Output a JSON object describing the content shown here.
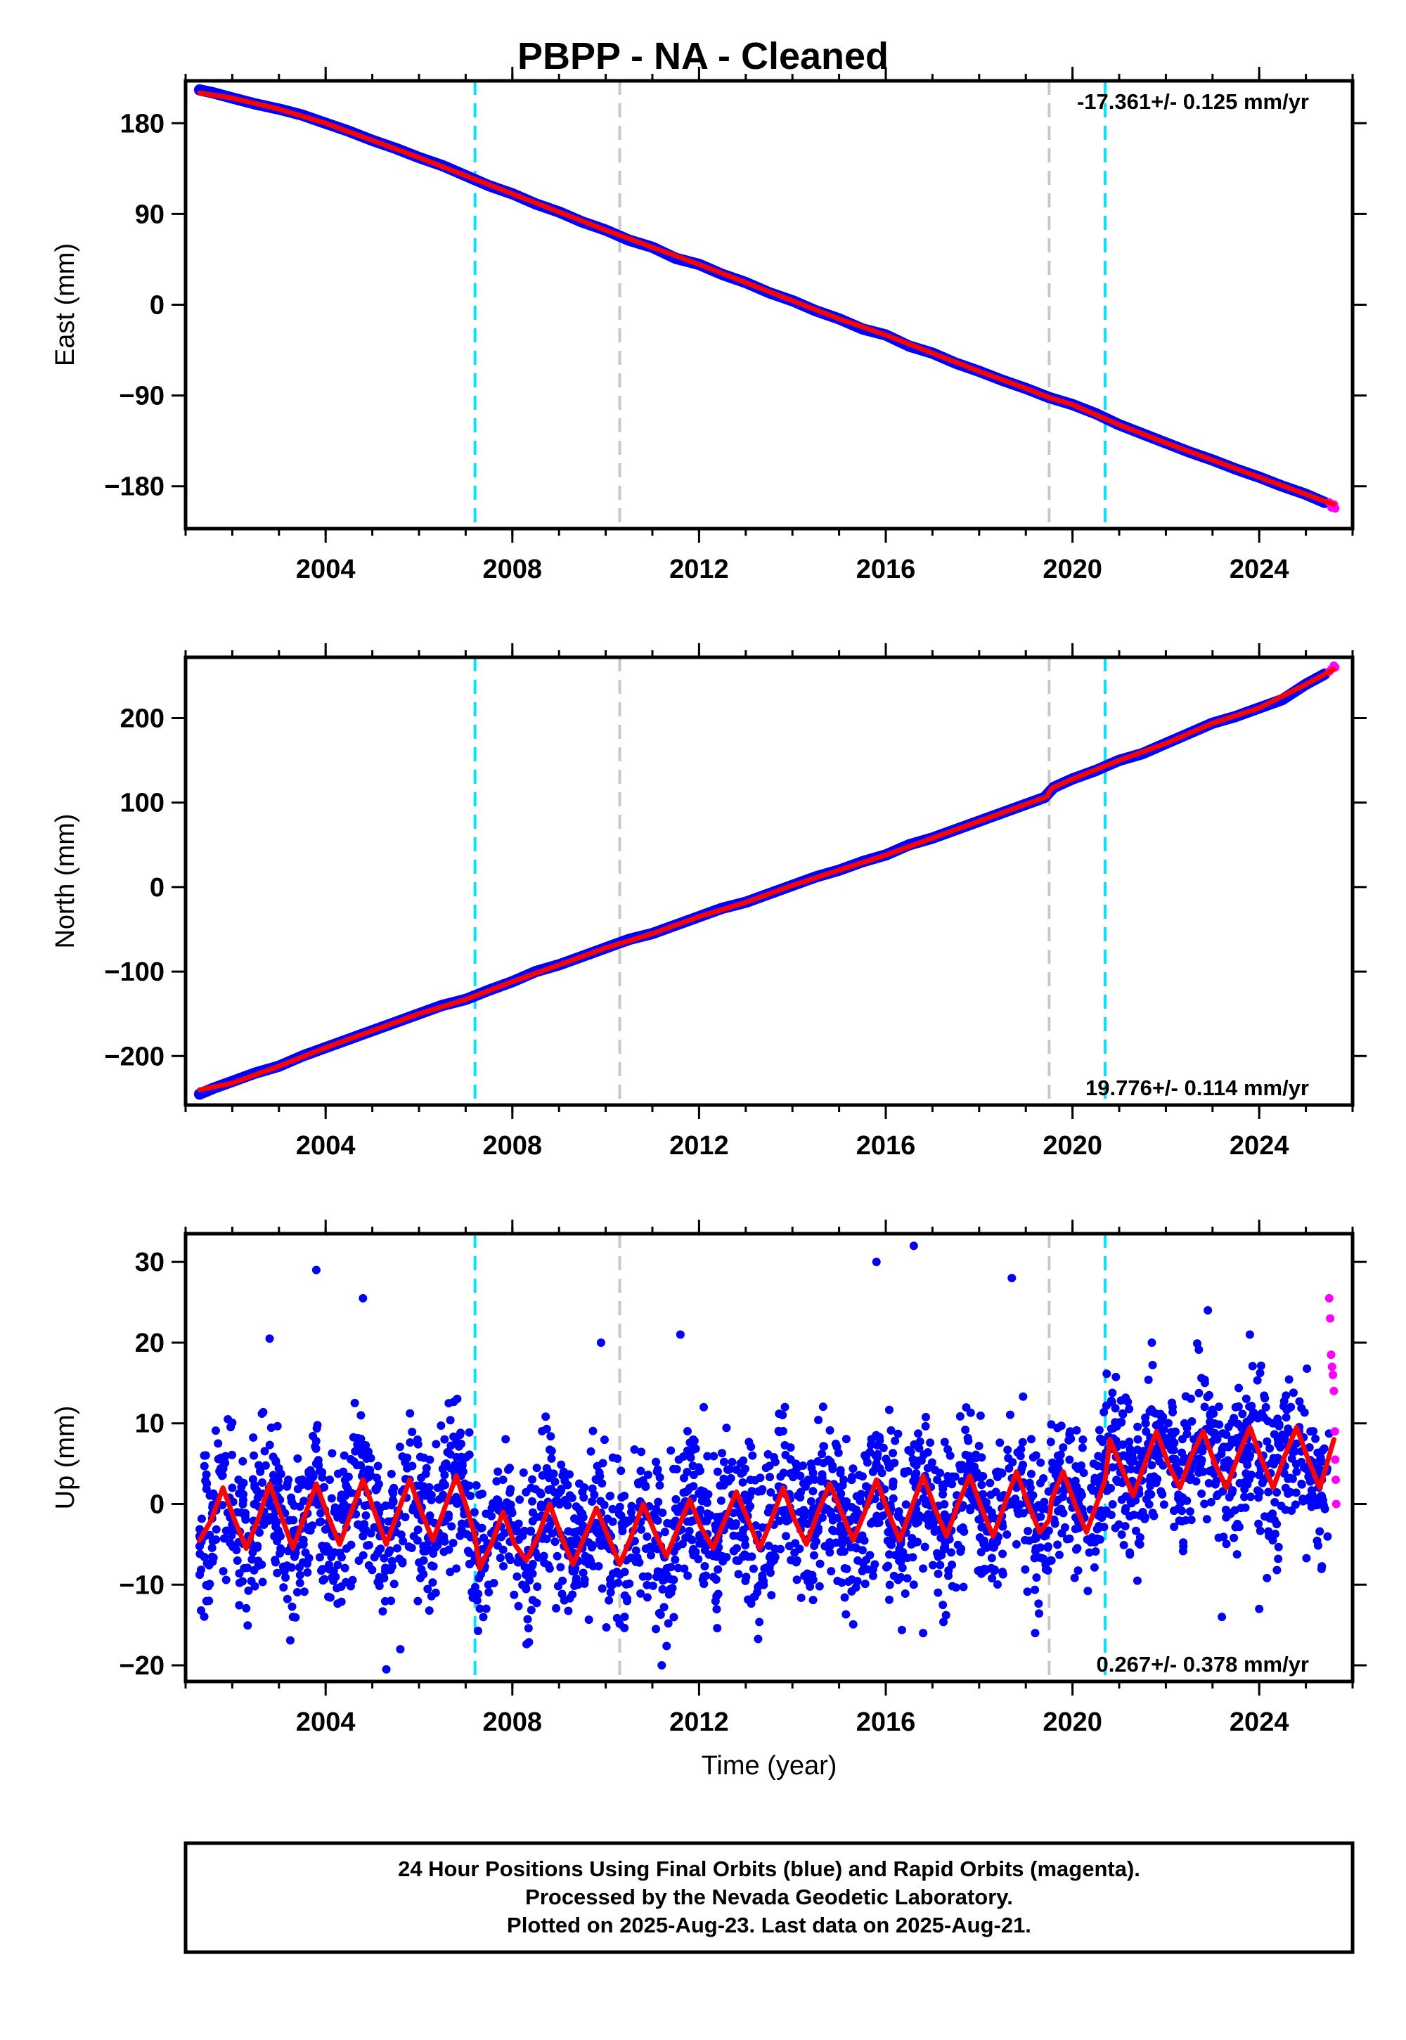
{
  "title": "PBPP  - NA - Cleaned",
  "chart_data": [
    {
      "type": "scatter",
      "id": "east",
      "ylabel": "East (mm)",
      "xlim": [
        2001.0,
        2026.0
      ],
      "ylim": [
        -222,
        222
      ],
      "xticks": [
        2004,
        2008,
        2012,
        2016,
        2020,
        2024
      ],
      "yticks": [
        180,
        90,
        0,
        -90,
        -180
      ],
      "ytick_labels": [
        "180",
        "90",
        "0",
        "−90",
        "−180"
      ],
      "rate_label": "-17.361+/- 0.125 mm/yr",
      "rate_position": "top-right",
      "vlines": [
        {
          "x": 2007.2,
          "color": "#00e5ff"
        },
        {
          "x": 2010.3,
          "color": "#c8c8c8"
        },
        {
          "x": 2019.5,
          "color": "#c8c8c8"
        },
        {
          "x": 2020.7,
          "color": "#00e5ff"
        }
      ],
      "final_orbits": {
        "color": "#0000ff",
        "x": [
          2001.3,
          2001.6,
          2002.0,
          2002.5,
          2003.0,
          2003.5,
          2004.0,
          2004.5,
          2005.0,
          2005.5,
          2006.0,
          2006.5,
          2007.0,
          2007.5,
          2008.0,
          2008.5,
          2009.0,
          2009.5,
          2010.0,
          2010.5,
          2011.0,
          2011.5,
          2012.0,
          2012.5,
          2013.0,
          2013.5,
          2014.0,
          2014.5,
          2015.0,
          2015.5,
          2016.0,
          2016.5,
          2017.0,
          2017.5,
          2018.0,
          2018.5,
          2019.0,
          2019.5,
          2020.0,
          2020.5,
          2021.0,
          2021.5,
          2022.0,
          2022.5,
          2023.0,
          2023.5,
          2024.0,
          2024.5,
          2025.0,
          2025.4
        ],
        "y": [
          213,
          210,
          205,
          199,
          194,
          188,
          180,
          172,
          163,
          155,
          146,
          138,
          128,
          118,
          110,
          100,
          92,
          82,
          74,
          64,
          57,
          46,
          40,
          30,
          22,
          12,
          4,
          -6,
          -14,
          -24,
          -30,
          -41,
          -48,
          -58,
          -66,
          -75,
          -83,
          -92,
          -99,
          -108,
          -119,
          -128,
          -137,
          -146,
          -154,
          -163,
          -171,
          -180,
          -188,
          -196
        ]
      },
      "rapid_orbits": {
        "color": "#ff00ff",
        "x": [
          2025.5,
          2025.55,
          2025.6,
          2025.63
        ],
        "y": [
          -196,
          -201,
          -198,
          -202
        ]
      },
      "model": {
        "color": "#ff0000",
        "x": [
          2001.3,
          2002.0,
          2003.0,
          2004.0,
          2005.0,
          2006.0,
          2007.0,
          2008.0,
          2009.0,
          2010.0,
          2011.0,
          2012.0,
          2013.0,
          2014.0,
          2015.0,
          2016.0,
          2017.0,
          2018.0,
          2019.0,
          2019.5,
          2020.0,
          2021.0,
          2022.0,
          2023.0,
          2024.0,
          2025.0,
          2025.6
        ],
        "y": [
          210,
          205,
          194,
          180,
          163,
          146,
          128,
          110,
          92,
          74,
          57,
          40,
          22,
          4,
          -14,
          -30,
          -48,
          -66,
          -83,
          -92,
          -99,
          -119,
          -137,
          -154,
          -171,
          -188,
          -198
        ]
      }
    },
    {
      "type": "scatter",
      "id": "north",
      "ylabel": "North (mm)",
      "xlim": [
        2001.0,
        2026.0
      ],
      "ylim": [
        -258,
        272
      ],
      "xticks": [
        2004,
        2008,
        2012,
        2016,
        2020,
        2024
      ],
      "yticks": [
        200,
        100,
        0,
        -100,
        -200
      ],
      "ytick_labels": [
        "200",
        "100",
        "0",
        "−100",
        "−200"
      ],
      "rate_label": "19.776+/- 0.114 mm/yr",
      "rate_position": "bottom-right",
      "vlines": [
        {
          "x": 2007.2,
          "color": "#00e5ff"
        },
        {
          "x": 2010.3,
          "color": "#c8c8c8"
        },
        {
          "x": 2019.5,
          "color": "#c8c8c8"
        },
        {
          "x": 2020.7,
          "color": "#00e5ff"
        }
      ],
      "final_orbits": {
        "color": "#0000ff",
        "x": [
          2001.3,
          2001.6,
          2002.0,
          2002.5,
          2003.0,
          2003.5,
          2004.0,
          2004.5,
          2005.0,
          2005.5,
          2006.0,
          2006.5,
          2007.0,
          2007.5,
          2008.0,
          2008.5,
          2009.0,
          2009.5,
          2010.0,
          2010.5,
          2011.0,
          2011.5,
          2012.0,
          2012.5,
          2013.0,
          2013.5,
          2014.0,
          2014.5,
          2015.0,
          2015.5,
          2016.0,
          2016.5,
          2017.0,
          2017.5,
          2018.0,
          2018.5,
          2019.0,
          2019.4,
          2019.6,
          2020.0,
          2020.5,
          2021.0,
          2021.5,
          2022.0,
          2022.5,
          2023.0,
          2023.5,
          2024.0,
          2024.5,
          2025.0,
          2025.4
        ],
        "y": [
          -245,
          -238,
          -230,
          -220,
          -212,
          -200,
          -190,
          -180,
          -170,
          -160,
          -150,
          -140,
          -133,
          -122,
          -112,
          -100,
          -92,
          -82,
          -72,
          -62,
          -55,
          -45,
          -35,
          -25,
          -18,
          -8,
          2,
          12,
          20,
          30,
          38,
          50,
          58,
          68,
          78,
          88,
          98,
          106,
          118,
          128,
          138,
          150,
          158,
          170,
          182,
          194,
          202,
          212,
          222,
          240,
          252
        ]
      },
      "rapid_orbits": {
        "color": "#ff00ff",
        "x": [
          2025.5,
          2025.55,
          2025.6,
          2025.63
        ],
        "y": [
          255,
          258,
          262,
          260
        ]
      },
      "model": {
        "color": "#ff0000",
        "x": [
          2001.3,
          2002.0,
          2003.0,
          2004.0,
          2005.0,
          2006.0,
          2007.0,
          2008.0,
          2009.0,
          2010.0,
          2011.0,
          2012.0,
          2013.0,
          2014.0,
          2015.0,
          2016.0,
          2017.0,
          2018.0,
          2019.0,
          2019.45,
          2019.55,
          2020.0,
          2021.0,
          2022.0,
          2023.0,
          2024.0,
          2025.0,
          2025.6
        ],
        "y": [
          -240,
          -232,
          -212,
          -190,
          -170,
          -150,
          -133,
          -112,
          -92,
          -72,
          -55,
          -35,
          -18,
          2,
          20,
          38,
          58,
          78,
          98,
          107,
          117,
          128,
          150,
          170,
          194,
          212,
          240,
          258
        ]
      }
    },
    {
      "type": "scatter",
      "id": "up",
      "ylabel": "Up (mm)",
      "xlabel": "Time (year)",
      "xlim": [
        2001.0,
        2026.0
      ],
      "ylim": [
        -22,
        33.5
      ],
      "xticks": [
        2004,
        2008,
        2012,
        2016,
        2020,
        2024
      ],
      "yticks": [
        30,
        20,
        10,
        0,
        -10,
        -20
      ],
      "ytick_labels": [
        "30",
        "20",
        "10",
        "0",
        "−10",
        "−20"
      ],
      "rate_label": "0.267+/- 0.378 mm/yr",
      "rate_position": "bottom-right",
      "vlines": [
        {
          "x": 2007.2,
          "color": "#00e5ff"
        },
        {
          "x": 2010.3,
          "color": "#c8c8c8"
        },
        {
          "x": 2019.5,
          "color": "#c8c8c8"
        },
        {
          "x": 2020.7,
          "color": "#00e5ff"
        }
      ],
      "final_orbits": {
        "color": "#0000ff",
        "x": [
          2001.3,
          2001.4,
          2001.5,
          2002.0,
          2002.3,
          2002.6,
          2002.9,
          2003.2,
          2003.5,
          2003.8,
          2004.1,
          2004.4,
          2004.8,
          2005.1,
          2005.4,
          2005.8,
          2006.1,
          2006.4,
          2006.8,
          2007.1,
          2007.4,
          2007.8,
          2008.1,
          2008.4,
          2008.8,
          2009.1,
          2009.4,
          2009.8,
          2010.1,
          2010.4,
          2010.8,
          2011.1,
          2011.4,
          2011.8,
          2012.1,
          2012.4,
          2012.8,
          2013.1,
          2013.4,
          2013.8,
          2014.1,
          2014.4,
          2014.8,
          2015.1,
          2015.4,
          2015.8,
          2016.1,
          2016.4,
          2016.8,
          2017.1,
          2017.4,
          2017.8,
          2018.1,
          2018.4,
          2018.8,
          2019.1,
          2019.4,
          2019.8,
          2020.1,
          2020.4,
          2020.8,
          2021.1,
          2021.4,
          2021.8,
          2022.1,
          2022.4,
          2022.8,
          2023.1,
          2023.4,
          2023.8,
          2024.1,
          2024.4,
          2024.8,
          2025.1,
          2025.4,
          2002.8,
          2003.8,
          2005.3,
          2005.6,
          2009.9,
          2011.2,
          2011.6,
          2012.1,
          2015.8,
          2016.8,
          2016.6,
          2018.7,
          2019.2,
          2021.7,
          2022.9,
          2023.8,
          2024.0,
          2023.2,
          2003.3,
          2004.8
        ],
        "y": [
          -4,
          6,
          -12,
          2,
          -5,
          4,
          -4,
          3,
          -5,
          5,
          -3,
          6,
          -4,
          2,
          -12,
          3,
          -7,
          2,
          -8,
          1,
          -8,
          3,
          -9,
          2,
          -8,
          4,
          -7,
          3,
          -10,
          1,
          -9,
          4,
          -11,
          2,
          -9,
          4,
          -7,
          3,
          -8,
          2,
          -7,
          5,
          -6,
          3,
          -7,
          5,
          -5,
          4,
          -8,
          3,
          -6,
          5,
          -5,
          4,
          -5,
          2,
          -4,
          7,
          1,
          2,
          7,
          4,
          8,
          6,
          4,
          10,
          4,
          8,
          5,
          9,
          3,
          8,
          4,
          9,
          4,
          20.5,
          29,
          -20.5,
          -18,
          20,
          -20,
          21,
          12,
          30,
          -16,
          32,
          28,
          -16,
          20,
          24,
          21,
          -13,
          -14,
          -14,
          25.5
        ]
      },
      "rapid_orbits": {
        "color": "#ff00ff",
        "x": [
          2025.5,
          2025.52,
          2025.54,
          2025.56,
          2025.58,
          2025.6,
          2025.62,
          2025.63,
          2025.64,
          2025.65
        ],
        "y": [
          25.5,
          23,
          18.5,
          17,
          16,
          14,
          9,
          5.5,
          3,
          0
        ]
      },
      "model": {
        "color": "#ff0000",
        "x": [
          2001.3,
          2001.55,
          2001.8,
          2002.05,
          2002.3,
          2002.55,
          2002.8,
          2003.05,
          2003.3,
          2003.55,
          2003.8,
          2004.05,
          2004.3,
          2004.55,
          2004.8,
          2005.05,
          2005.3,
          2005.55,
          2005.8,
          2006.05,
          2006.3,
          2006.55,
          2006.8,
          2007.05,
          2007.2,
          2007.3,
          2007.55,
          2007.8,
          2008.05,
          2008.3,
          2008.55,
          2008.8,
          2009.05,
          2009.3,
          2009.55,
          2009.8,
          2010.05,
          2010.3,
          2010.55,
          2010.8,
          2011.05,
          2011.3,
          2011.55,
          2011.8,
          2012.05,
          2012.3,
          2012.55,
          2012.8,
          2013.05,
          2013.3,
          2013.55,
          2013.8,
          2014.05,
          2014.3,
          2014.55,
          2014.8,
          2015.05,
          2015.3,
          2015.55,
          2015.8,
          2016.05,
          2016.3,
          2016.55,
          2016.8,
          2017.05,
          2017.3,
          2017.55,
          2017.8,
          2018.05,
          2018.3,
          2018.55,
          2018.8,
          2019.05,
          2019.3,
          2019.5,
          2019.55,
          2019.8,
          2020.05,
          2020.3,
          2020.55,
          2020.7,
          2020.8,
          2021.05,
          2021.3,
          2021.55,
          2021.8,
          2022.05,
          2022.3,
          2022.55,
          2022.8,
          2023.05,
          2023.3,
          2023.55,
          2023.8,
          2024.05,
          2024.3,
          2024.55,
          2024.8,
          2025.05,
          2025.3,
          2025.6
        ],
        "y": [
          -4.5,
          -2,
          2,
          -2,
          -5.5,
          -2,
          2.5,
          -1.5,
          -5.5,
          -1.5,
          2.5,
          -1.5,
          -5,
          -1,
          3,
          -1,
          -5,
          -1,
          3,
          -1,
          -4.5,
          -0.5,
          3.5,
          -1,
          -4,
          -8,
          -5,
          -1,
          -5,
          -7,
          -4,
          0,
          -4,
          -7.5,
          -4,
          -0.5,
          -4,
          -7.5,
          -4,
          0,
          -3.5,
          -6.5,
          -3,
          0.5,
          -3,
          -5.5,
          -2,
          1.5,
          -2,
          -5.5,
          -2,
          2,
          -2,
          -5,
          -1,
          2.5,
          -1,
          -4.5,
          -1,
          3,
          -1,
          -4.5,
          -0.5,
          3.5,
          -0.5,
          -4,
          0,
          3.5,
          -0.5,
          -4,
          0,
          4,
          0,
          -3.5,
          -2,
          0.5,
          4,
          0,
          -3.5,
          0.5,
          3,
          8,
          4.5,
          1,
          5,
          9,
          5,
          2,
          6,
          9,
          5,
          2,
          6,
          9.5,
          5.5,
          2,
          6,
          9.5,
          5.5,
          2,
          8
        ]
      }
    }
  ],
  "footer": {
    "line1": "24 Hour Positions Using Final Orbits (blue) and Rapid Orbits (magenta).",
    "line2": "Processed by the Nevada Geodetic Laboratory.",
    "line3": "Plotted on 2025-Aug-23. Last data on 2025-Aug-21."
  }
}
